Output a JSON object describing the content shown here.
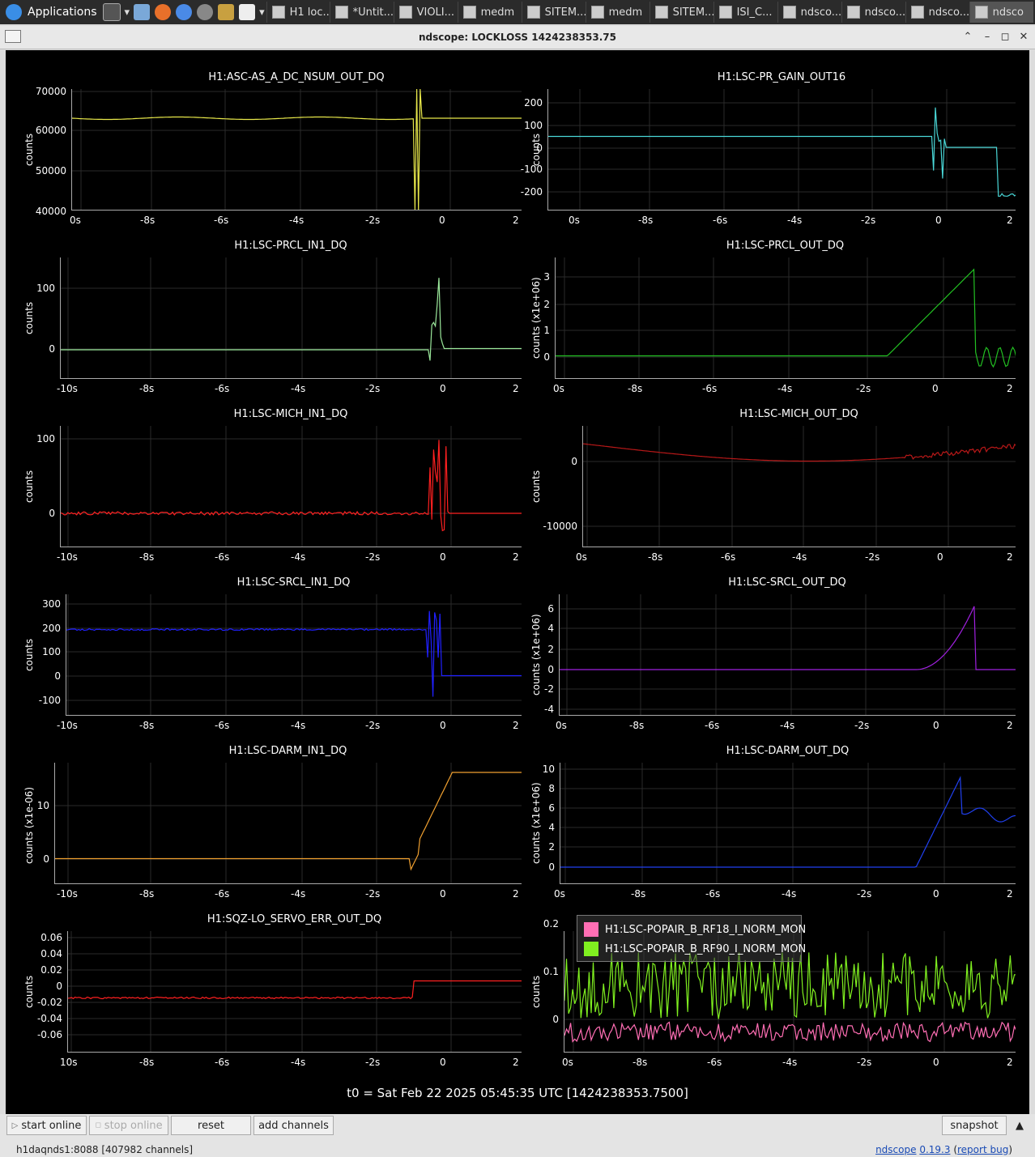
{
  "taskbar": {
    "applications_label": "Applications",
    "tasks": [
      {
        "label": "H1 loc...",
        "icon": "firefox-icon",
        "active": false
      },
      {
        "label": "*Untit...",
        "icon": "text-editor-icon",
        "active": false
      },
      {
        "label": "VIOLI...",
        "icon": "terminal-icon",
        "active": false
      },
      {
        "label": "medm",
        "icon": "window-icon",
        "active": false
      },
      {
        "label": "SITEM...",
        "icon": "terminal-icon",
        "active": false
      },
      {
        "label": "medm",
        "icon": "window-icon",
        "active": false
      },
      {
        "label": "SITEM...",
        "icon": "terminal-icon",
        "active": false
      },
      {
        "label": "ISI_C...",
        "icon": "terminal-icon",
        "active": false
      },
      {
        "label": "ndsco...",
        "icon": "window-icon",
        "active": false
      },
      {
        "label": "ndsco...",
        "icon": "window-icon",
        "active": false
      },
      {
        "label": "ndsco...",
        "icon": "window-icon",
        "active": false
      },
      {
        "label": "ndsco",
        "icon": "window-icon",
        "active": true
      }
    ]
  },
  "window": {
    "title": "ndscope: LOCKLOSS 1424238353.75"
  },
  "plots": [
    {
      "title": "H1:ASC-AS_A_DC_NSUM_OUT_DQ",
      "ylabel": "counts",
      "yticks": [
        "70000",
        "60000",
        "50000",
        "40000"
      ],
      "xticks": [
        "0s",
        "-8s",
        "-6s",
        "-4s",
        "-2s",
        "0",
        "2"
      ],
      "color": "#e8e84a"
    },
    {
      "title": "H1:LSC-PR_GAIN_OUT16",
      "ylabel": "counts",
      "yticks": [
        "200",
        "100",
        "0",
        "-100",
        "-200"
      ],
      "xticks": [
        "0s",
        "-8s",
        "-6s",
        "-4s",
        "-2s",
        "0",
        "2"
      ],
      "color": "#4ad8d8"
    },
    {
      "title": "H1:LSC-PRCL_IN1_DQ",
      "ylabel": "counts",
      "yticks": [
        "100",
        "0"
      ],
      "xticks": [
        "-10s",
        "-8s",
        "-6s",
        "-4s",
        "-2s",
        "0",
        "2"
      ],
      "color": "#9be89b"
    },
    {
      "title": "H1:LSC-PRCL_OUT_DQ",
      "ylabel": "counts (x1e+06)",
      "yticks": [
        "3",
        "2",
        "1",
        "0"
      ],
      "xticks": [
        "0s",
        "-8s",
        "-6s",
        "-4s",
        "-2s",
        "0",
        "2"
      ],
      "color": "#22c022"
    },
    {
      "title": "H1:LSC-MICH_IN1_DQ",
      "ylabel": "counts",
      "yticks": [
        "100",
        "0"
      ],
      "xticks": [
        "-10s",
        "-8s",
        "-6s",
        "-4s",
        "-2s",
        "0",
        "2"
      ],
      "color": "#ff2020"
    },
    {
      "title": "H1:LSC-MICH_OUT_DQ",
      "ylabel": "counts",
      "yticks": [
        "0",
        "-10000"
      ],
      "xticks": [
        "0s",
        "-8s",
        "-6s",
        "-4s",
        "-2s",
        "0",
        "2"
      ],
      "color": "#b81818"
    },
    {
      "title": "H1:LSC-SRCL_IN1_DQ",
      "ylabel": "counts",
      "yticks": [
        "300",
        "200",
        "100",
        "0",
        "-100"
      ],
      "xticks": [
        "-10s",
        "-8s",
        "-6s",
        "-4s",
        "-2s",
        "0",
        "2"
      ],
      "color": "#2020ff"
    },
    {
      "title": "H1:LSC-SRCL_OUT_DQ",
      "ylabel": "counts (x1e+06)",
      "yticks": [
        "6",
        "4",
        "2",
        "0",
        "-2",
        "-4"
      ],
      "xticks": [
        "0s",
        "-8s",
        "-6s",
        "-4s",
        "-2s",
        "0",
        "2"
      ],
      "color": "#a020e0"
    },
    {
      "title": "H1:LSC-DARM_IN1_DQ",
      "ylabel": "counts (x1e-06)",
      "yticks": [
        "10",
        "0"
      ],
      "xticks": [
        "-10s",
        "-8s",
        "-6s",
        "-4s",
        "-2s",
        "0",
        "2"
      ],
      "color": "#f0a030"
    },
    {
      "title": "H1:LSC-DARM_OUT_DQ",
      "ylabel": "counts (x1e+06)",
      "yticks": [
        "10",
        "8",
        "6",
        "4",
        "2",
        "0"
      ],
      "xticks": [
        "0s",
        "-8s",
        "-6s",
        "-4s",
        "-2s",
        "0",
        "2"
      ],
      "color": "#2040f0"
    },
    {
      "title": "H1:SQZ-LO_SERVO_ERR_OUT_DQ",
      "ylabel": "counts",
      "yticks": [
        "0.06",
        "0.04",
        "0.02",
        "0",
        "-0.02",
        "-0.04",
        "-0.06"
      ],
      "xticks": [
        "10s",
        "-8s",
        "-6s",
        "-4s",
        "-2s",
        "0",
        "2"
      ],
      "color": "#ff2020"
    },
    {
      "title": "",
      "ylabel": "counts",
      "yticks": [
        "0.2",
        "0.1",
        "0"
      ],
      "xticks": [
        "0s",
        "-8s",
        "-6s",
        "-4s",
        "-2s",
        "0",
        "2"
      ],
      "color": "#80f020"
    }
  ],
  "legend": [
    {
      "label": "H1:LSC-POPAIR_B_RF18_I_NORM_MON",
      "color": "#ff6eb4"
    },
    {
      "label": "H1:LSC-POPAIR_B_RF90_I_NORM_MON",
      "color": "#80f020"
    }
  ],
  "t0_label": "t0 = Sat Feb 22 2025 05:45:35 UTC [1424238353.7500]",
  "buttons": {
    "start_online": "start online",
    "stop_online": "stop online",
    "reset": "reset",
    "add_channels": "add channels",
    "snapshot": "snapshot"
  },
  "status": {
    "server": "h1daqnds1:8088  [407982 channels]",
    "app_name": "ndscope",
    "version": "0.19.3",
    "report_bug": "report bug"
  }
}
